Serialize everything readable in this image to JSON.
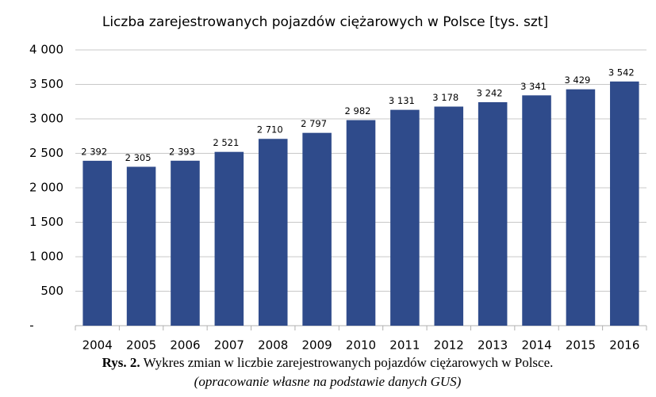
{
  "chart_data": {
    "type": "bar",
    "title": "Liczba zarejestrowanych pojazdów ciężarowych w Polsce [tys. szt]",
    "categories": [
      "2004",
      "2005",
      "2006",
      "2007",
      "2008",
      "2009",
      "2010",
      "2011",
      "2012",
      "2013",
      "2014",
      "2015",
      "2016"
    ],
    "values": [
      2392,
      2305,
      2393,
      2521,
      2710,
      2797,
      2982,
      3131,
      3178,
      3242,
      3341,
      3429,
      3542
    ],
    "value_labels": [
      "2 392",
      "2 305",
      "2 393",
      "2 521",
      "2 710",
      "2 797",
      "2 982",
      "3 131",
      "3 178",
      "3 242",
      "3 341",
      "3 429",
      "3 542"
    ],
    "color": "#2f4b8b",
    "ylim": [
      0,
      4000
    ],
    "yticks": [
      {
        "value": 0,
        "label": "-"
      },
      500,
      {
        "value": 1000,
        "label": "1 000"
      },
      {
        "value": 1500,
        "label": "1 500"
      },
      {
        "value": 2000,
        "label": "2 000"
      },
      {
        "value": 2500,
        "label": "2 500"
      },
      {
        "value": 3000,
        "label": "3 000"
      },
      {
        "value": 3500,
        "label": "3 500"
      },
      {
        "value": 4000,
        "label": "4 000"
      }
    ],
    "grid": true
  },
  "caption": {
    "label": "Rys. 2.",
    "text": "Wykres zmian w liczbie zarejestrowanych pojazdów ciężarowych w Polsce.",
    "source": "(opracowanie własne na podstawie danych GUS)"
  }
}
